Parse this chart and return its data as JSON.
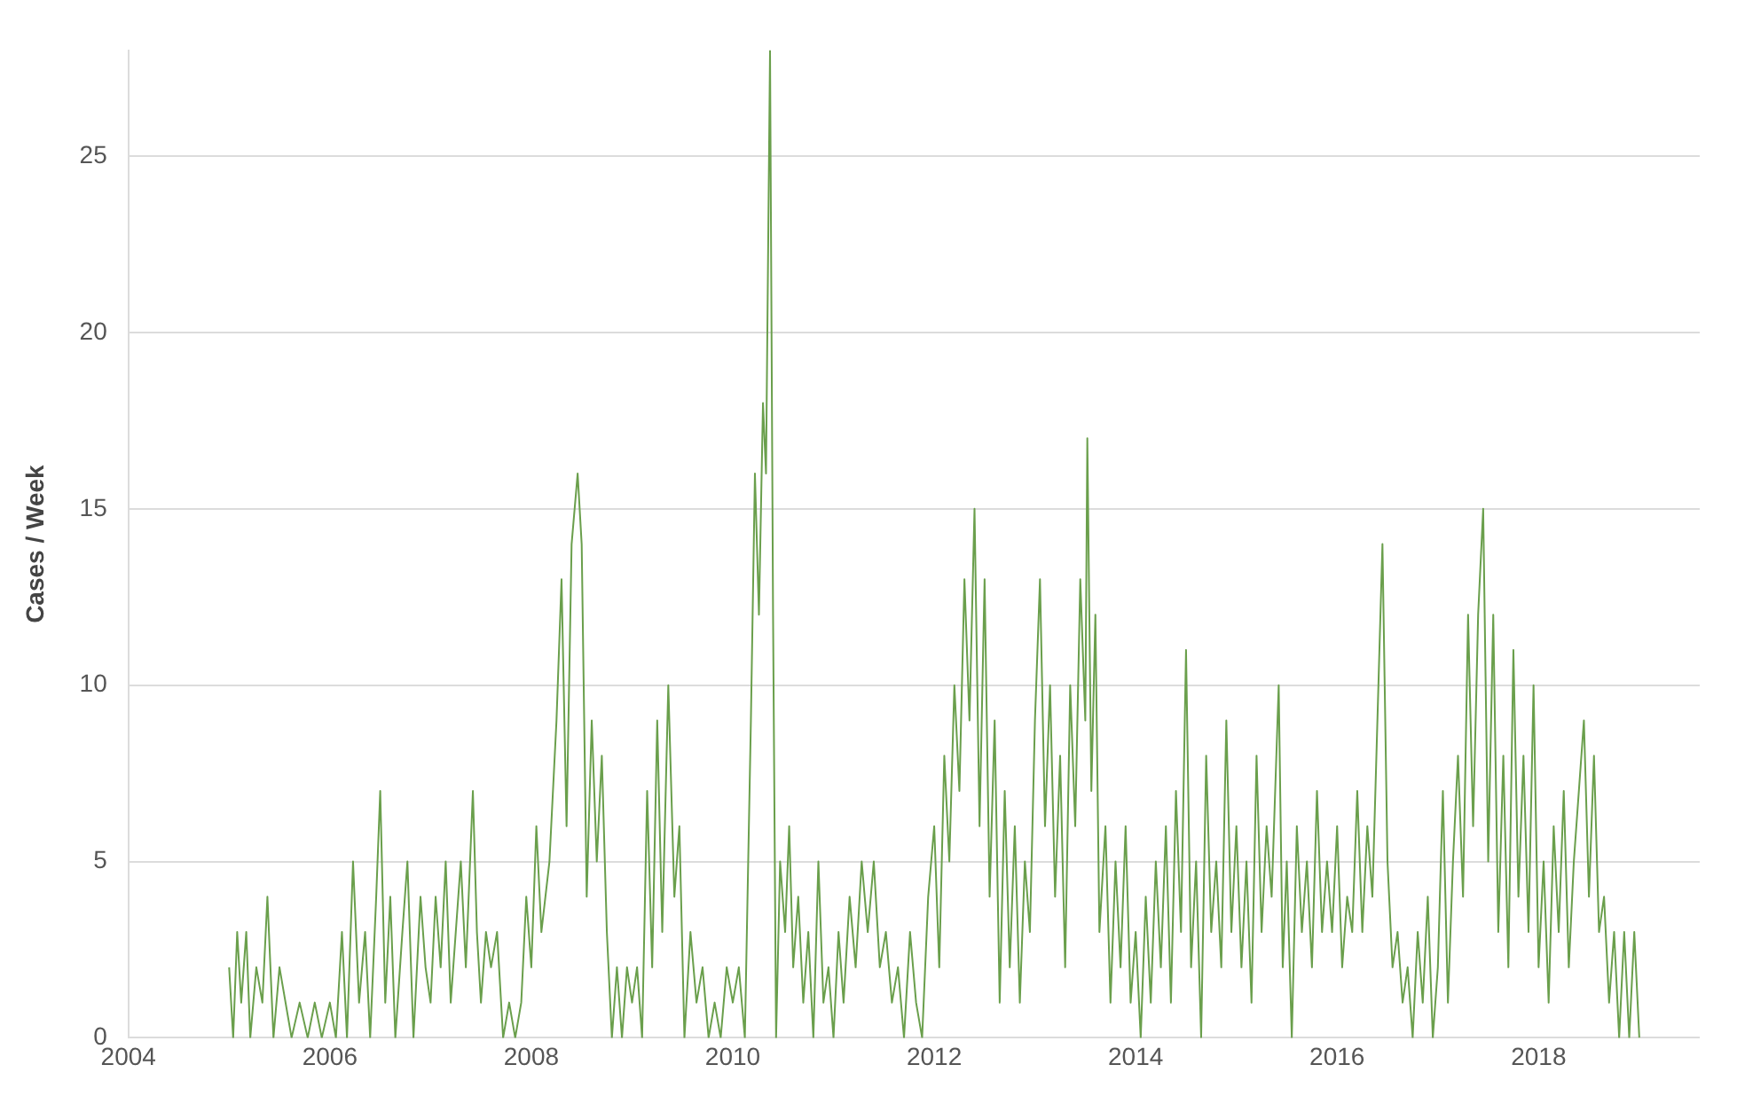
{
  "chart_data": {
    "type": "line",
    "ylabel": "Cases / Week",
    "xlim": [
      2004,
      2019.6
    ],
    "xticks": [
      2004,
      2006,
      2008,
      2010,
      2012,
      2014,
      2016,
      2018
    ],
    "ylim": [
      0,
      28
    ],
    "yticks": [
      0,
      5,
      10,
      15,
      20,
      25
    ],
    "grid": "y",
    "legend": false,
    "marker": "none",
    "line_style": "solid",
    "series": [
      {
        "color": "#6a9f4c",
        "x": [
          2005.0,
          2005.04,
          2005.08,
          2005.12,
          2005.17,
          2005.21,
          2005.27,
          2005.33,
          2005.38,
          2005.44,
          2005.5,
          2005.56,
          2005.62,
          2005.7,
          2005.78,
          2005.85,
          2005.92,
          2006.0,
          2006.06,
          2006.12,
          2006.17,
          2006.23,
          2006.29,
          2006.35,
          2006.4,
          2006.46,
          2006.5,
          2006.55,
          2006.6,
          2006.65,
          2006.72,
          2006.77,
          2006.83,
          2006.9,
          2006.95,
          2007.0,
          2007.05,
          2007.1,
          2007.15,
          2007.2,
          2007.25,
          2007.3,
          2007.35,
          2007.42,
          2007.46,
          2007.5,
          2007.55,
          2007.6,
          2007.66,
          2007.72,
          2007.78,
          2007.84,
          2007.9,
          2007.95,
          2008.0,
          2008.05,
          2008.1,
          2008.18,
          2008.25,
          2008.3,
          2008.35,
          2008.4,
          2008.46,
          2008.5,
          2008.55,
          2008.6,
          2008.65,
          2008.7,
          2008.75,
          2008.8,
          2008.85,
          2008.9,
          2008.95,
          2009.0,
          2009.05,
          2009.1,
          2009.15,
          2009.2,
          2009.25,
          2009.3,
          2009.36,
          2009.42,
          2009.47,
          2009.52,
          2009.58,
          2009.64,
          2009.7,
          2009.76,
          2009.82,
          2009.88,
          2009.94,
          2010.0,
          2010.06,
          2010.12,
          2010.18,
          2010.22,
          2010.26,
          2010.3,
          2010.33,
          2010.37,
          2010.4,
          2010.43,
          2010.47,
          2010.52,
          2010.56,
          2010.6,
          2010.65,
          2010.7,
          2010.75,
          2010.8,
          2010.85,
          2010.9,
          2010.95,
          2011.0,
          2011.05,
          2011.1,
          2011.16,
          2011.22,
          2011.28,
          2011.34,
          2011.4,
          2011.46,
          2011.52,
          2011.58,
          2011.64,
          2011.7,
          2011.76,
          2011.82,
          2011.88,
          2011.94,
          2012.0,
          2012.05,
          2012.1,
          2012.15,
          2012.2,
          2012.25,
          2012.3,
          2012.35,
          2012.4,
          2012.45,
          2012.5,
          2012.55,
          2012.6,
          2012.65,
          2012.7,
          2012.75,
          2012.8,
          2012.85,
          2012.9,
          2012.95,
          2013.0,
          2013.05,
          2013.1,
          2013.15,
          2013.2,
          2013.25,
          2013.3,
          2013.35,
          2013.4,
          2013.45,
          2013.5,
          2013.52,
          2013.56,
          2013.6,
          2013.64,
          2013.7,
          2013.75,
          2013.8,
          2013.85,
          2013.9,
          2013.95,
          2014.0,
          2014.05,
          2014.1,
          2014.15,
          2014.2,
          2014.25,
          2014.3,
          2014.35,
          2014.4,
          2014.45,
          2014.5,
          2014.55,
          2014.6,
          2014.65,
          2014.7,
          2014.75,
          2014.8,
          2014.85,
          2014.9,
          2014.95,
          2015.0,
          2015.05,
          2015.1,
          2015.15,
          2015.2,
          2015.25,
          2015.3,
          2015.35,
          2015.42,
          2015.46,
          2015.5,
          2015.55,
          2015.6,
          2015.65,
          2015.7,
          2015.75,
          2015.8,
          2015.85,
          2015.9,
          2015.95,
          2016.0,
          2016.05,
          2016.1,
          2016.15,
          2016.2,
          2016.25,
          2016.3,
          2016.35,
          2016.45,
          2016.5,
          2016.55,
          2016.6,
          2016.65,
          2016.7,
          2016.75,
          2016.8,
          2016.85,
          2016.9,
          2016.95,
          2017.0,
          2017.05,
          2017.1,
          2017.15,
          2017.2,
          2017.25,
          2017.3,
          2017.35,
          2017.4,
          2017.45,
          2017.5,
          2017.55,
          2017.6,
          2017.65,
          2017.7,
          2017.75,
          2017.8,
          2017.85,
          2017.9,
          2017.95,
          2018.0,
          2018.05,
          2018.1,
          2018.15,
          2018.2,
          2018.25,
          2018.3,
          2018.35,
          2018.45,
          2018.5,
          2018.55,
          2018.6,
          2018.65,
          2018.7,
          2018.75,
          2018.8,
          2018.85,
          2018.9,
          2018.95,
          2019.0
        ],
        "values": [
          2,
          0,
          3,
          1,
          3,
          0,
          2,
          1,
          4,
          0,
          2,
          1,
          0,
          1,
          0,
          1,
          0,
          1,
          0,
          3,
          0,
          5,
          1,
          3,
          0,
          4,
          7,
          1,
          4,
          0,
          3,
          5,
          0,
          4,
          2,
          1,
          4,
          2,
          5,
          1,
          3,
          5,
          2,
          7,
          3,
          1,
          3,
          2,
          3,
          0,
          1,
          0,
          1,
          4,
          2,
          6,
          3,
          5,
          9,
          13,
          6,
          14,
          16,
          14,
          4,
          9,
          5,
          8,
          3,
          0,
          2,
          0,
          2,
          1,
          2,
          0,
          7,
          2,
          9,
          3,
          10,
          4,
          6,
          0,
          3,
          1,
          2,
          0,
          1,
          0,
          2,
          1,
          2,
          0,
          9,
          16,
          12,
          18,
          16,
          28,
          12,
          0,
          5,
          3,
          6,
          2,
          4,
          1,
          3,
          0,
          5,
          1,
          2,
          0,
          3,
          1,
          4,
          2,
          5,
          3,
          5,
          2,
          3,
          1,
          2,
          0,
          3,
          1,
          0,
          4,
          6,
          2,
          8,
          5,
          10,
          7,
          13,
          9,
          15,
          6,
          13,
          4,
          9,
          1,
          7,
          2,
          6,
          1,
          5,
          3,
          9,
          13,
          6,
          10,
          4,
          8,
          2,
          10,
          6,
          13,
          9,
          17,
          7,
          12,
          3,
          6,
          1,
          5,
          2,
          6,
          1,
          3,
          0,
          4,
          1,
          5,
          2,
          6,
          1,
          7,
          3,
          11,
          2,
          5,
          0,
          8,
          3,
          5,
          2,
          9,
          3,
          6,
          2,
          5,
          1,
          8,
          3,
          6,
          4,
          10,
          2,
          5,
          0,
          6,
          3,
          5,
          2,
          7,
          3,
          5,
          3,
          6,
          2,
          4,
          3,
          7,
          3,
          6,
          4,
          14,
          5,
          2,
          3,
          1,
          2,
          0,
          3,
          1,
          4,
          0,
          2,
          7,
          1,
          5,
          8,
          4,
          12,
          6,
          12,
          15,
          5,
          12,
          3,
          8,
          2,
          11,
          4,
          8,
          3,
          10,
          2,
          5,
          1,
          6,
          3,
          7,
          2,
          5,
          9,
          4,
          8,
          3,
          4,
          1,
          3,
          0,
          3,
          0,
          3,
          0
        ]
      }
    ]
  }
}
